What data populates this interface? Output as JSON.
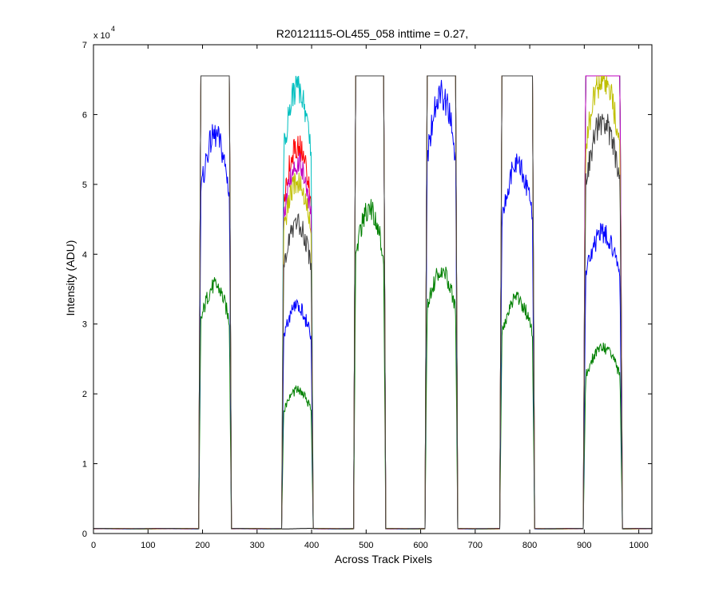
{
  "chart_data": {
    "type": "line",
    "title": "R20121115-OL455_058 inttime = 0.27,",
    "xlabel": "Across Track Pixels",
    "ylabel": "Intensity (ADU)",
    "y_exponent_base": "x 10",
    "y_exponent_power": "4",
    "xlim": [
      0,
      1024
    ],
    "ylim": [
      0,
      70000
    ],
    "x_ticks": [
      0,
      100,
      200,
      300,
      400,
      500,
      600,
      700,
      800,
      900,
      1000
    ],
    "x_tick_labels": [
      "0",
      "100",
      "200",
      "300",
      "400",
      "500",
      "600",
      "700",
      "800",
      "900",
      "1000"
    ],
    "y_ticks": [
      0,
      10000,
      20000,
      30000,
      40000,
      50000,
      60000,
      70000
    ],
    "y_tick_labels": [
      "0",
      "1",
      "2",
      "3",
      "4",
      "5",
      "6",
      "7"
    ],
    "baseline": 700,
    "saturation": 65535,
    "ramp_fraction": 0.1,
    "noise_amplitude": 0.035,
    "segments": [
      {
        "start": 193,
        "end": 253
      },
      {
        "start": 345,
        "end": 403
      },
      {
        "start": 477,
        "end": 536
      },
      {
        "start": 608,
        "end": 668
      },
      {
        "start": 745,
        "end": 809
      },
      {
        "start": 898,
        "end": 970
      }
    ],
    "series": [
      {
        "name": "black",
        "color": "#000000",
        "peaks": [
          65535,
          0,
          65535,
          65535,
          65535,
          65535
        ]
      },
      {
        "name": "green",
        "color": "#008000",
        "peaks": [
          35500,
          20500,
          46500,
          37500,
          33500,
          26500
        ]
      },
      {
        "name": "blue",
        "color": "#0000ff",
        "peaks": [
          57000,
          32500,
          65535,
          63000,
          53000,
          43000
        ]
      },
      {
        "name": "red",
        "color": "#ff0000",
        "peaks": [
          65535,
          55500,
          65535,
          65535,
          65535,
          65535
        ]
      },
      {
        "name": "cyan",
        "color": "#00bfbf",
        "peaks": [
          65535,
          64000,
          65535,
          65535,
          65535,
          65535
        ]
      },
      {
        "name": "magenta",
        "color": "#bf00bf",
        "peaks": [
          65535,
          53000,
          65535,
          65535,
          65535,
          65535
        ]
      },
      {
        "name": "olive",
        "color": "#bfbf00",
        "peaks": [
          65535,
          50500,
          65535,
          65535,
          65535,
          65000
        ]
      },
      {
        "name": "dark-gray",
        "color": "#404040",
        "peaks": [
          65535,
          44500,
          65535,
          65535,
          65535,
          59000
        ]
      }
    ]
  }
}
